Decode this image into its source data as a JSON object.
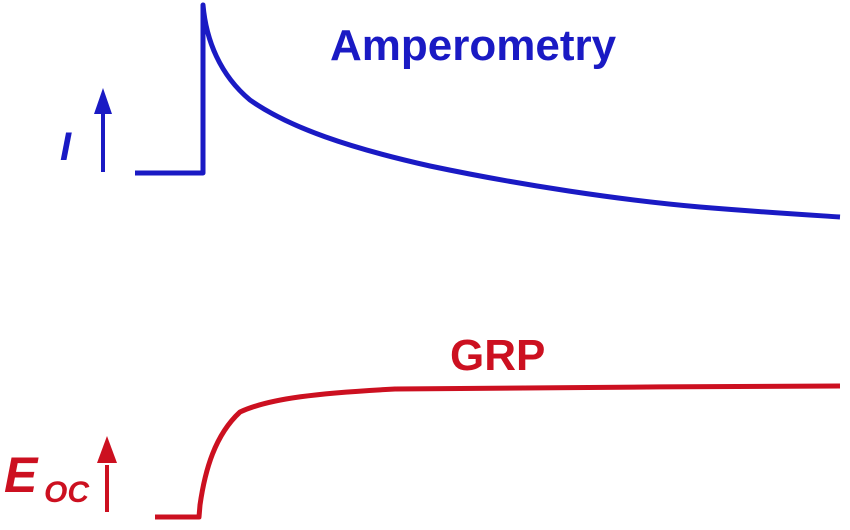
{
  "colors": {
    "amperometry": "#1a1ac4",
    "grp": "#cc1020"
  },
  "top": {
    "title": "Amperometry",
    "axis_label": "I"
  },
  "bottom": {
    "title": "GRP",
    "axis_label_main": "E",
    "axis_label_sub": "OC"
  }
}
